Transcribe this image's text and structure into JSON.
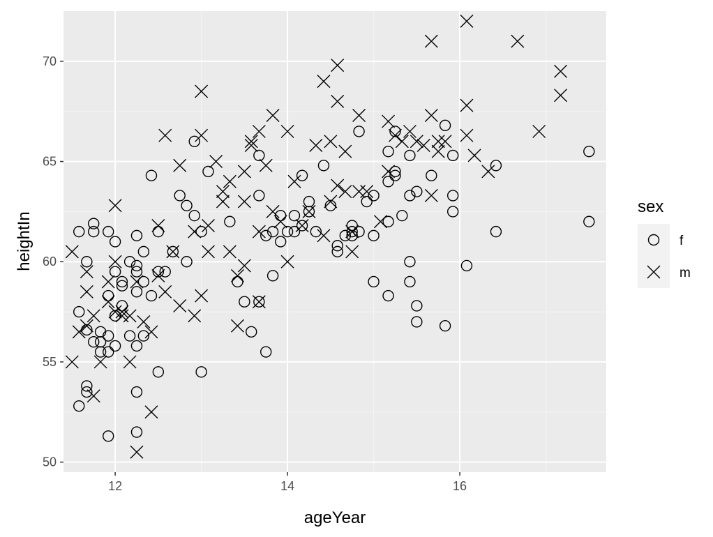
{
  "chart_data": {
    "type": "scatter",
    "title": "",
    "xlabel": "ageYear",
    "ylabel": "heightIn",
    "xlim": [
      11.4,
      17.7
    ],
    "ylim": [
      49.5,
      72.5
    ],
    "xticks": [
      12,
      14,
      16
    ],
    "yticks": [
      50,
      55,
      60,
      65,
      70
    ],
    "grid": true,
    "legend": {
      "title": "sex",
      "position": "right"
    },
    "colors": {
      "panel": "#ebebeb",
      "grid_major": "#ffffff",
      "grid_minor": "#f5f5f5",
      "marks": "#000000",
      "legend_key": "#f2f2f2"
    },
    "series": [
      {
        "name": "f",
        "shape": "circle",
        "x": [
          11.58,
          11.58,
          11.58,
          11.67,
          11.67,
          11.67,
          11.67,
          11.75,
          11.75,
          11.75,
          11.83,
          11.83,
          11.83,
          11.92,
          11.92,
          11.92,
          11.92,
          11.92,
          12.0,
          12.0,
          12.0,
          12.0,
          12.08,
          12.08,
          12.08,
          12.17,
          12.17,
          12.25,
          12.25,
          12.25,
          12.25,
          12.25,
          12.25,
          12.25,
          12.33,
          12.33,
          12.33,
          12.42,
          12.42,
          12.5,
          12.5,
          12.5,
          12.58,
          12.67,
          12.75,
          12.83,
          12.83,
          12.92,
          12.92,
          13.0,
          13.0,
          13.08,
          13.33,
          13.42,
          13.5,
          13.58,
          13.67,
          13.67,
          13.67,
          13.75,
          13.75,
          13.83,
          13.83,
          13.92,
          13.92,
          14.0,
          14.08,
          14.08,
          14.17,
          14.17,
          14.25,
          14.25,
          14.33,
          14.42,
          14.5,
          14.58,
          14.58,
          14.67,
          14.75,
          14.75,
          14.75,
          14.83,
          14.83,
          14.92,
          15.0,
          15.0,
          15.0,
          15.17,
          15.17,
          15.17,
          15.17,
          15.25,
          15.25,
          15.25,
          15.33,
          15.42,
          15.42,
          15.42,
          15.42,
          15.5,
          15.5,
          15.5,
          15.67,
          15.83,
          15.83,
          15.92,
          15.92,
          15.92,
          16.08,
          16.42,
          16.42,
          17.5,
          17.5
        ],
        "y": [
          61.5,
          57.5,
          52.8,
          60.0,
          56.6,
          53.8,
          53.5,
          61.9,
          61.5,
          56.0,
          56.5,
          56.0,
          55.5,
          61.5,
          58.3,
          56.3,
          55.5,
          51.3,
          61.0,
          59.5,
          57.3,
          55.8,
          58.8,
          59.0,
          57.8,
          56.3,
          60.0,
          61.3,
          59.8,
          59.5,
          58.5,
          55.8,
          53.5,
          51.5,
          59.0,
          60.5,
          56.3,
          64.3,
          58.3,
          61.5,
          59.5,
          54.5,
          59.5,
          60.5,
          63.3,
          62.8,
          60.0,
          66.0,
          62.3,
          61.5,
          54.5,
          64.5,
          62.0,
          59.0,
          58.0,
          56.5,
          65.3,
          63.3,
          58.0,
          61.3,
          55.5,
          61.5,
          59.3,
          62.3,
          61.0,
          61.5,
          62.3,
          61.5,
          61.8,
          64.3,
          63.0,
          62.5,
          61.5,
          64.8,
          62.8,
          60.8,
          60.5,
          61.3,
          61.5,
          61.8,
          61.3,
          61.5,
          66.5,
          63.0,
          59.0,
          61.3,
          63.3,
          62.0,
          64.0,
          65.5,
          58.3,
          66.5,
          64.5,
          64.3,
          62.3,
          65.3,
          63.3,
          60.0,
          59.0,
          63.5,
          57.8,
          57.0,
          64.3,
          66.8,
          56.8,
          62.5,
          65.3,
          63.3,
          59.8,
          64.8,
          61.5,
          65.5,
          62.0
        ]
      },
      {
        "name": "m",
        "shape": "x",
        "x": [
          11.5,
          11.5,
          11.58,
          11.67,
          11.67,
          11.67,
          11.75,
          11.75,
          11.83,
          11.92,
          11.92,
          12.0,
          12.0,
          12.0,
          12.08,
          12.08,
          12.17,
          12.17,
          12.25,
          12.25,
          12.33,
          12.42,
          12.42,
          12.5,
          12.5,
          12.58,
          12.58,
          12.67,
          12.75,
          12.75,
          12.92,
          12.92,
          13.0,
          13.0,
          13.0,
          13.08,
          13.08,
          13.17,
          13.25,
          13.25,
          13.33,
          13.33,
          13.42,
          13.42,
          13.5,
          13.5,
          13.5,
          13.58,
          13.58,
          13.67,
          13.67,
          13.67,
          13.75,
          13.83,
          13.83,
          13.92,
          14.0,
          14.0,
          14.08,
          14.17,
          14.25,
          14.33,
          14.42,
          14.42,
          14.5,
          14.5,
          14.58,
          14.58,
          14.58,
          14.67,
          14.67,
          14.75,
          14.75,
          14.83,
          14.83,
          14.92,
          15.08,
          15.17,
          15.17,
          15.25,
          15.33,
          15.42,
          15.5,
          15.58,
          15.67,
          15.67,
          15.67,
          15.75,
          15.75,
          15.83,
          16.08,
          16.08,
          16.08,
          16.17,
          16.33,
          16.67,
          16.92,
          17.17,
          17.17
        ],
        "y": [
          60.5,
          55.0,
          56.5,
          58.5,
          56.8,
          59.5,
          53.3,
          57.3,
          55.0,
          58.0,
          59.0,
          62.8,
          57.5,
          60.0,
          57.3,
          57.5,
          55.0,
          57.3,
          50.5,
          59.0,
          57.0,
          56.5,
          52.5,
          61.8,
          59.3,
          66.3,
          58.5,
          60.5,
          64.8,
          57.8,
          61.5,
          57.3,
          68.5,
          66.3,
          58.3,
          61.8,
          60.5,
          65.0,
          63.5,
          63.0,
          64.0,
          60.5,
          59.3,
          56.8,
          64.5,
          63.0,
          59.8,
          66.0,
          65.8,
          66.5,
          61.5,
          58.0,
          64.8,
          67.3,
          62.5,
          62.0,
          66.5,
          60.0,
          64.0,
          61.8,
          62.5,
          65.8,
          69.0,
          61.3,
          66.0,
          63.0,
          69.8,
          68.0,
          63.8,
          65.5,
          63.5,
          61.5,
          60.5,
          67.3,
          63.5,
          63.5,
          62.0,
          67.0,
          64.5,
          66.3,
          66.0,
          66.5,
          66.0,
          65.8,
          71.0,
          67.3,
          63.3,
          66.0,
          65.5,
          66.0,
          72.0,
          67.8,
          66.3,
          65.3,
          64.5,
          71.0,
          66.5,
          69.5,
          68.3
        ]
      }
    ]
  }
}
